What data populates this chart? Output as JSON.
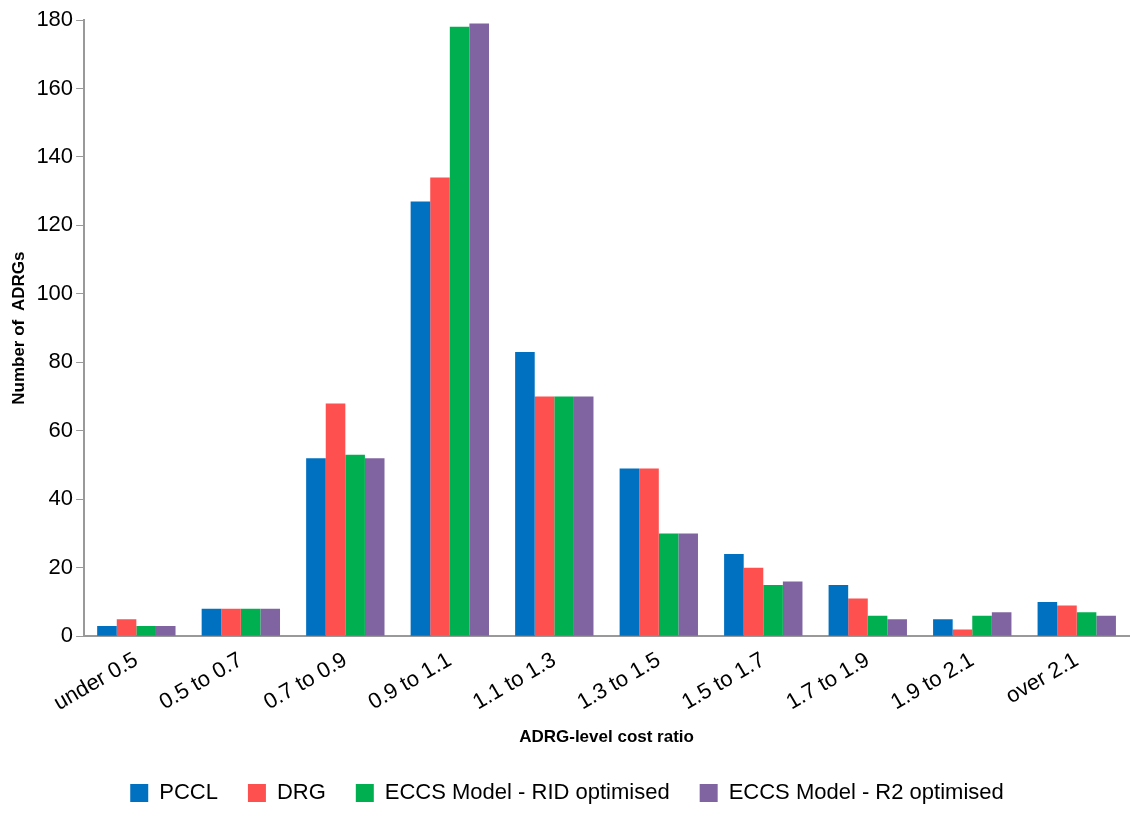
{
  "chart_data": {
    "type": "bar",
    "xlabel": "ADRG-level cost ratio",
    "ylabel": "Number of  ADRGs",
    "categories": [
      "under 0.5",
      "0.5 to 0.7",
      "0.7 to 0.9",
      "0.9 to 1.1",
      "1.1 to 1.3",
      "1.3 to 1.5",
      "1.5 to 1.7",
      "1.7 to 1.9",
      "1.9 to 2.1",
      "over 2.1"
    ],
    "series": [
      {
        "name": "PCCL",
        "color": "#0070c0",
        "values": [
          3,
          8,
          52,
          127,
          83,
          49,
          24,
          15,
          5,
          10
        ]
      },
      {
        "name": "DRG",
        "color": "#ff5050",
        "values": [
          5,
          8,
          68,
          134,
          70,
          49,
          20,
          11,
          2,
          9
        ]
      },
      {
        "name": "ECCS Model - RID optimised",
        "color": "#00b050",
        "values": [
          3,
          8,
          53,
          178,
          70,
          30,
          15,
          6,
          6,
          7
        ]
      },
      {
        "name": "ECCS Model - R2 optimised",
        "color": "#8064a2",
        "values": [
          3,
          8,
          52,
          179,
          70,
          30,
          16,
          5,
          7,
          6
        ]
      }
    ],
    "ylim": [
      0,
      180
    ],
    "yticks": [
      0,
      20,
      40,
      60,
      80,
      100,
      120,
      140,
      160,
      180
    ],
    "grid": false,
    "legend": "bottom"
  }
}
